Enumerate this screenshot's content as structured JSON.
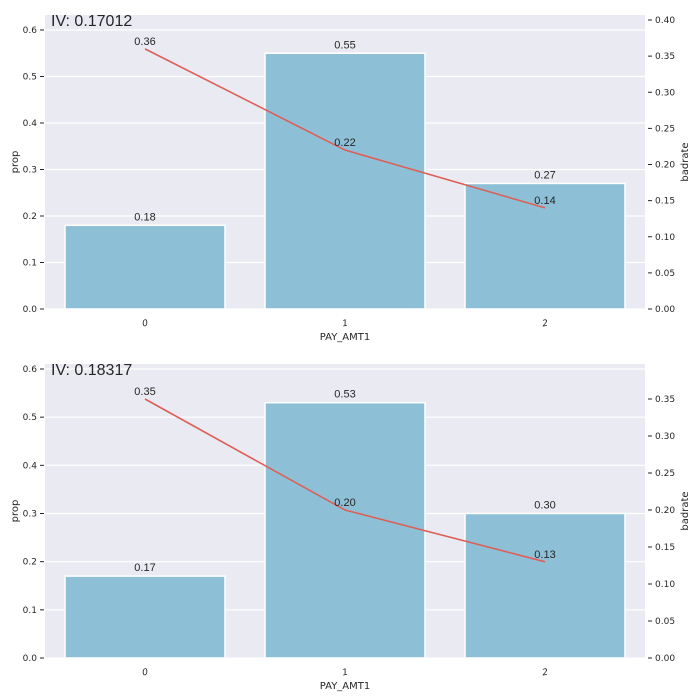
{
  "colors": {
    "plot_background": "#eaeaf2",
    "grid": "#ffffff",
    "bar": "#8dc0d6",
    "line": "#dd5f57",
    "text": "#262626"
  },
  "chart_data": [
    {
      "type": "bar+line",
      "title": "IV: 0.17012",
      "xlabel": "PAY_AMT1",
      "ylabel": "prop",
      "y2label": "badrate",
      "categories": [
        "0",
        "1",
        "2"
      ],
      "series": [
        {
          "name": "prop",
          "type": "bar",
          "axis": "left",
          "values": [
            0.18,
            0.55,
            0.27
          ],
          "labels": [
            "0.18",
            "0.55",
            "0.27"
          ]
        },
        {
          "name": "badrate",
          "type": "line",
          "axis": "right",
          "values": [
            0.36,
            0.22,
            0.14
          ],
          "labels": [
            "0.36",
            "0.22",
            "0.14"
          ]
        }
      ],
      "ylim": [
        0,
        0.63
      ],
      "y2lim": [
        0,
        0.407
      ],
      "yticks": [
        "0.0",
        "0.1",
        "0.2",
        "0.3",
        "0.4",
        "0.5",
        "0.6"
      ],
      "y2ticks": [
        "0.00",
        "0.05",
        "0.10",
        "0.15",
        "0.20",
        "0.25",
        "0.30",
        "0.35",
        "0.40"
      ],
      "grid": true,
      "legend": "none"
    },
    {
      "type": "bar+line",
      "title": "IV: 0.18317",
      "xlabel": "PAY_AMT1",
      "ylabel": "prop",
      "y2label": "badrate",
      "categories": [
        "0",
        "1",
        "2"
      ],
      "series": [
        {
          "name": "prop",
          "type": "bar",
          "axis": "left",
          "values": [
            0.17,
            0.53,
            0.3
          ],
          "labels": [
            "0.17",
            "0.53",
            "0.30"
          ]
        },
        {
          "name": "badrate",
          "type": "line",
          "axis": "right",
          "values": [
            0.35,
            0.2,
            0.13
          ],
          "labels": [
            "0.35",
            "0.20",
            "0.13"
          ]
        }
      ],
      "ylim": [
        0,
        0.61
      ],
      "y2lim": [
        0,
        0.397
      ],
      "yticks": [
        "0.0",
        "0.1",
        "0.2",
        "0.3",
        "0.4",
        "0.5",
        "0.6"
      ],
      "y2ticks": [
        "0.00",
        "0.05",
        "0.10",
        "0.15",
        "0.20",
        "0.25",
        "0.30",
        "0.35"
      ],
      "grid": true,
      "legend": "none"
    }
  ]
}
